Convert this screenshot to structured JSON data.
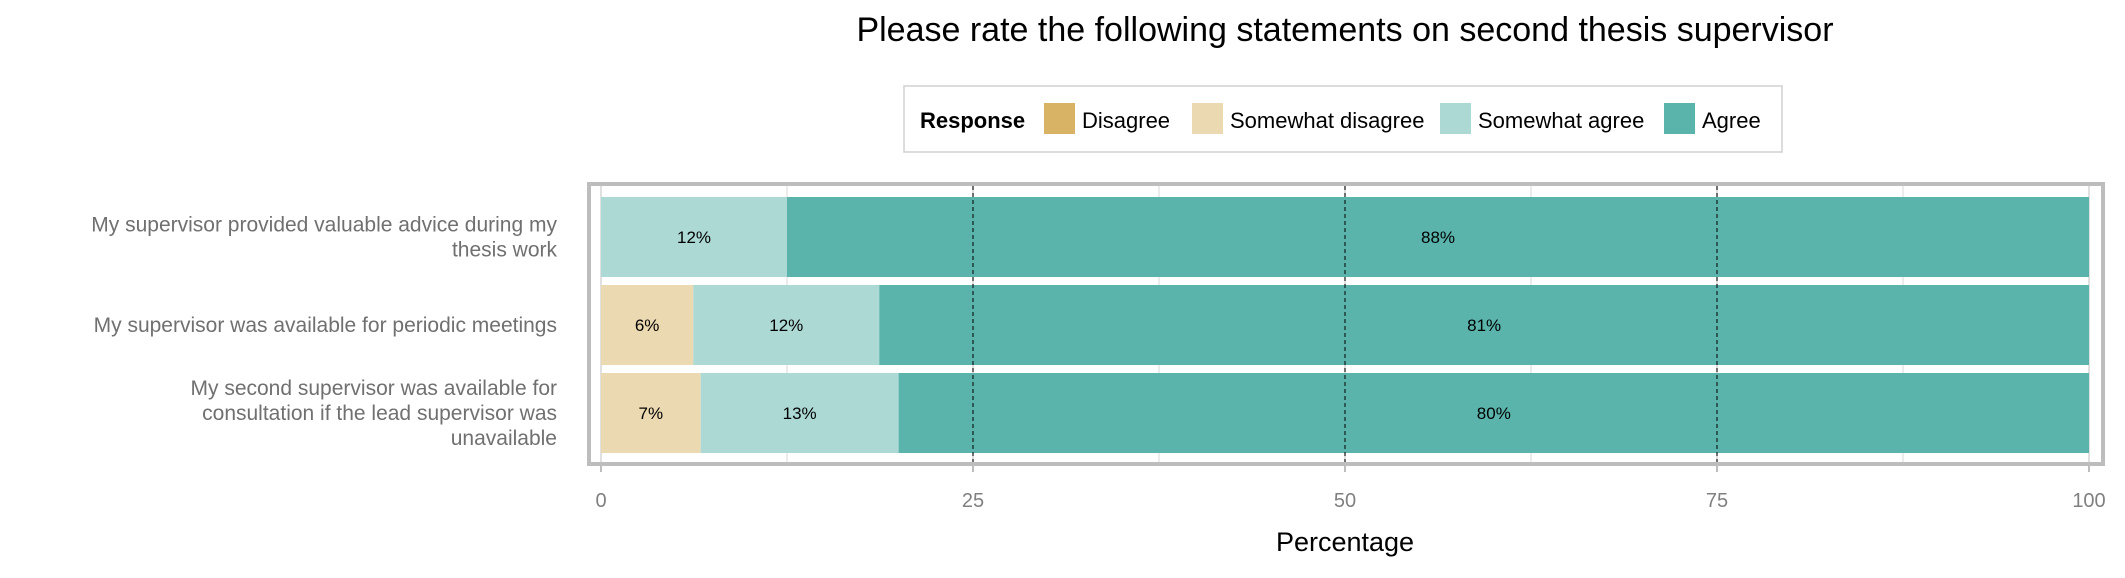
{
  "chart_data": {
    "type": "bar",
    "orientation": "horizontal",
    "stacked": true,
    "title": "Please rate the following statements on second thesis supervisor",
    "xlabel": "Percentage",
    "ylabel": "",
    "xlim": [
      0,
      100
    ],
    "xticks": [
      "0",
      "25",
      "50",
      "75",
      "100"
    ],
    "grid": true,
    "legend": {
      "title": "Response",
      "placement": "top"
    },
    "categories": [
      "My supervisor provided valuable advice during my thesis work",
      "My supervisor was available for periodic meetings",
      "My second supervisor was available for consultation if the lead supervisor was unavailable"
    ],
    "category_lines": [
      [
        "My supervisor provided valuable advice during my",
        "thesis work"
      ],
      [
        "My supervisor was available for periodic meetings"
      ],
      [
        "My second supervisor was available for",
        "consultation if the lead supervisor was",
        "unavailable"
      ]
    ],
    "series": [
      {
        "name": "Disagree",
        "color": "#D8B365",
        "values": [
          0,
          0,
          0
        ],
        "labels": [
          "",
          "",
          ""
        ]
      },
      {
        "name": "Somewhat disagree",
        "color": "#EBD9B2",
        "values": [
          0,
          6.2,
          6.7
        ],
        "labels": [
          "",
          "6%",
          "7%"
        ]
      },
      {
        "name": "Somewhat agree",
        "color": "#ADD9D4",
        "values": [
          12.5,
          12.5,
          13.3
        ],
        "labels": [
          "12%",
          "12%",
          "13%"
        ]
      },
      {
        "name": "Agree",
        "color": "#5AB4AC",
        "values": [
          87.5,
          81.3,
          80.0
        ],
        "labels": [
          "88%",
          "81%",
          "80%"
        ]
      }
    ]
  }
}
